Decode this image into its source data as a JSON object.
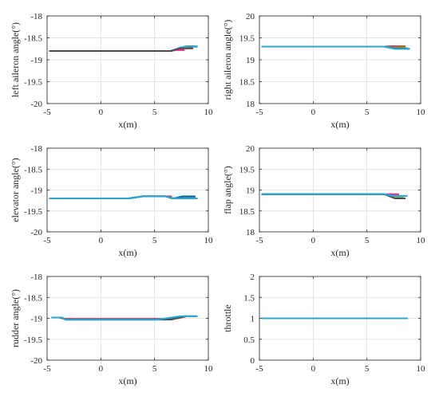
{
  "chart_data": [
    {
      "type": "line",
      "xlabel": "x(m)",
      "ylabel": "left aileron angle(°)",
      "xlim": [
        -5,
        10
      ],
      "ylim": [
        -20,
        -18
      ],
      "xticks": [
        -5,
        0,
        5,
        10
      ],
      "yticks": [
        -18,
        -18.5,
        -19,
        -19.5,
        -20
      ],
      "ytick_labels": [
        "-18",
        "-18.5",
        "-19",
        "-19.5",
        "-20"
      ],
      "grid": true,
      "series": [
        {
          "color": "#0072BD",
          "x": [
            -4.8,
            6.5,
            7.2,
            7.8,
            9.0
          ],
          "y": [
            -18.8,
            -18.8,
            -18.75,
            -18.7,
            -18.7
          ]
        },
        {
          "color": "#D95319",
          "x": [
            -4.8,
            6.5,
            7.2,
            8.0,
            8.5
          ],
          "y": [
            -18.8,
            -18.8,
            -18.76,
            -18.73,
            -18.73
          ]
        },
        {
          "color": "#77AC30",
          "x": [
            -4.8,
            6.5,
            7.0,
            7.6,
            8.2
          ],
          "y": [
            -18.8,
            -18.8,
            -18.76,
            -18.72,
            -18.72
          ]
        },
        {
          "color": "#E6288F",
          "x": [
            -4.8,
            6.5,
            7.0,
            7.8
          ],
          "y": [
            -18.8,
            -18.8,
            -18.78,
            -18.78
          ]
        },
        {
          "color": "#2CA7D2",
          "x": [
            -4.8,
            6.6,
            7.4,
            8.0,
            9.0
          ],
          "y": [
            -18.8,
            -18.8,
            -18.72,
            -18.69,
            -18.69
          ]
        },
        {
          "color": "#4D4D4D",
          "x": [
            -4.8,
            6.5,
            7.3,
            8.6
          ],
          "y": [
            -18.8,
            -18.8,
            -18.74,
            -18.74
          ]
        }
      ]
    },
    {
      "type": "line",
      "xlabel": "x(m)",
      "ylabel": "right aileron angle(°)",
      "xlim": [
        -5,
        10
      ],
      "ylim": [
        18,
        20
      ],
      "xticks": [
        -5,
        0,
        5,
        10
      ],
      "yticks": [
        20,
        19.5,
        19,
        18.5,
        18
      ],
      "ytick_labels": [
        "20",
        "19.5",
        "19",
        "18.5",
        "18"
      ],
      "grid": true,
      "series": [
        {
          "color": "#D95319",
          "x": [
            -4.8,
            6.6,
            7.2,
            8.6
          ],
          "y": [
            19.3,
            19.3,
            19.31,
            19.31
          ]
        },
        {
          "color": "#E6288F",
          "x": [
            -4.8,
            6.6,
            7.4,
            8.0
          ],
          "y": [
            19.3,
            19.3,
            19.3,
            19.3
          ]
        },
        {
          "color": "#77AC30",
          "x": [
            -4.8,
            6.6,
            7.4,
            8.6
          ],
          "y": [
            19.3,
            19.3,
            19.28,
            19.28
          ]
        },
        {
          "color": "#4D4D4D",
          "x": [
            -4.8,
            6.6,
            7.6,
            8.8
          ],
          "y": [
            19.3,
            19.3,
            19.26,
            19.26
          ]
        },
        {
          "color": "#0072BD",
          "x": [
            -4.8,
            6.6,
            7.6,
            9.0
          ],
          "y": [
            19.3,
            19.3,
            19.25,
            19.25
          ]
        },
        {
          "color": "#2CA7D2",
          "x": [
            -4.8,
            6.6,
            7.6,
            9.0
          ],
          "y": [
            19.3,
            19.3,
            19.25,
            19.25
          ]
        }
      ]
    },
    {
      "type": "line",
      "xlabel": "x(m)",
      "ylabel": "elevator angle(°)",
      "xlim": [
        -5,
        10
      ],
      "ylim": [
        -20,
        -18
      ],
      "xticks": [
        -5,
        0,
        5,
        10
      ],
      "yticks": [
        -18,
        -18.5,
        -19,
        -19.5,
        -20
      ],
      "ytick_labels": [
        "-18",
        "-18.5",
        "-19",
        "-19.5",
        "-20"
      ],
      "grid": true,
      "series": [
        {
          "color": "#E6288F",
          "x": [
            -4.8,
            2.6,
            3.9,
            6.6
          ],
          "y": [
            -19.2,
            -19.2,
            -19.15,
            -19.15
          ]
        },
        {
          "color": "#D95319",
          "x": [
            -4.8,
            2.6,
            3.9,
            6.0,
            6.8,
            8.0
          ],
          "y": [
            -19.2,
            -19.2,
            -19.15,
            -19.15,
            -19.2,
            -19.2
          ]
        },
        {
          "color": "#77AC30",
          "x": [
            -4.8,
            2.6,
            3.9,
            6.0,
            6.6,
            7.5
          ],
          "y": [
            -19.2,
            -19.2,
            -19.15,
            -19.15,
            -19.2,
            -19.2
          ]
        },
        {
          "color": "#4D4D4D",
          "x": [
            -4.8,
            2.6,
            3.9,
            6.0,
            6.8,
            7.6,
            8.8
          ],
          "y": [
            -19.2,
            -19.2,
            -19.15,
            -19.15,
            -19.2,
            -19.16,
            -19.16
          ]
        },
        {
          "color": "#0072BD",
          "x": [
            -4.8,
            2.6,
            3.9,
            6.0,
            6.8,
            7.6,
            8.8
          ],
          "y": [
            -19.2,
            -19.2,
            -19.15,
            -19.15,
            -19.2,
            -19.15,
            -19.15
          ]
        },
        {
          "color": "#2CA7D2",
          "x": [
            -4.8,
            2.6,
            3.9,
            6.0,
            6.8,
            9.0
          ],
          "y": [
            -19.2,
            -19.2,
            -19.15,
            -19.15,
            -19.2,
            -19.2
          ]
        }
      ]
    },
    {
      "type": "line",
      "xlabel": "x(m)",
      "ylabel": "flap angle(°)",
      "xlim": [
        -5,
        10
      ],
      "ylim": [
        18,
        20
      ],
      "xticks": [
        -5,
        0,
        5,
        10
      ],
      "yticks": [
        20,
        19.5,
        19,
        18.5,
        18
      ],
      "ytick_labels": [
        "20",
        "19.5",
        "19",
        "18.5",
        "18"
      ],
      "grid": true,
      "series": [
        {
          "color": "#E6288F",
          "x": [
            -4.8,
            6.6,
            7.4,
            8.0
          ],
          "y": [
            18.9,
            18.9,
            18.9,
            18.9
          ]
        },
        {
          "color": "#D95319",
          "x": [
            -4.8,
            6.6,
            7.4,
            8.6
          ],
          "y": [
            18.9,
            18.9,
            18.86,
            18.86
          ]
        },
        {
          "color": "#77AC30",
          "x": [
            -4.8,
            6.6,
            7.4,
            8.4
          ],
          "y": [
            18.9,
            18.9,
            18.84,
            18.84
          ]
        },
        {
          "color": "#4D4D4D",
          "x": [
            -4.8,
            6.6,
            7.6,
            8.6
          ],
          "y": [
            18.9,
            18.9,
            18.8,
            18.8
          ]
        },
        {
          "color": "#0072BD",
          "x": [
            -4.8,
            6.6,
            7.4,
            8.0
          ],
          "y": [
            18.9,
            18.9,
            18.86,
            18.86
          ]
        },
        {
          "color": "#2CA7D2",
          "x": [
            -4.8,
            6.6,
            7.4,
            8.8
          ],
          "y": [
            18.9,
            18.9,
            18.86,
            18.86
          ]
        }
      ]
    },
    {
      "type": "line",
      "xlabel": "x(m)",
      "ylabel": "rudder angle(°)",
      "xlim": [
        -5,
        10
      ],
      "ylim": [
        -20,
        -18
      ],
      "xticks": [
        -5,
        0,
        5,
        10
      ],
      "yticks": [
        -18,
        -18.5,
        -19,
        -19.5,
        -20
      ],
      "ytick_labels": [
        "-18",
        "-18.5",
        "-19",
        "-19.5",
        "-20"
      ],
      "grid": true,
      "series": [
        {
          "color": "#D95319",
          "x": [
            -4.0,
            -3.3,
            6.0,
            7.2,
            7.9
          ],
          "y": [
            -18.98,
            -19.01,
            -19.01,
            -19.0,
            -18.96
          ]
        },
        {
          "color": "#77AC30",
          "x": [
            -3.8,
            -3.2,
            5.8,
            6.8,
            7.5
          ],
          "y": [
            -18.99,
            -19.02,
            -19.02,
            -19.0,
            -18.96
          ]
        },
        {
          "color": "#E6288F",
          "x": [
            -3.8,
            -3.2,
            6.2,
            7.4
          ],
          "y": [
            -18.99,
            -19.02,
            -19.02,
            -18.97
          ]
        },
        {
          "color": "#4D4D4D",
          "x": [
            -4.6,
            -3.6,
            -3.3,
            6.6,
            7.8,
            8.8
          ],
          "y": [
            -18.98,
            -18.98,
            -19.03,
            -19.03,
            -18.95,
            -18.95
          ]
        },
        {
          "color": "#0072BD",
          "x": [
            -4.6,
            -3.6,
            -3.3,
            5.2,
            7.8,
            9.0
          ],
          "y": [
            -18.98,
            -18.98,
            -19.03,
            -19.03,
            -18.95,
            -18.95
          ]
        },
        {
          "color": "#2CA7D2",
          "x": [
            -4.6,
            -3.6,
            -3.3,
            5.2,
            7.4,
            9.0
          ],
          "y": [
            -18.98,
            -18.98,
            -19.03,
            -19.03,
            -18.95,
            -18.95
          ]
        }
      ]
    },
    {
      "type": "line",
      "xlabel": "x(m)",
      "ylabel": "throttle",
      "xlim": [
        -5,
        10
      ],
      "ylim": [
        0,
        2
      ],
      "xticks": [
        -5,
        0,
        5,
        10
      ],
      "yticks": [
        2,
        1.5,
        1,
        0.5,
        0
      ],
      "ytick_labels": [
        "2",
        "1.5",
        "1",
        "0.5",
        "0"
      ],
      "grid": true,
      "series": [
        {
          "color": "#D95319",
          "x": [
            -4.8,
            8.6
          ],
          "y": [
            1,
            1
          ]
        },
        {
          "color": "#77AC30",
          "x": [
            -4.8,
            8.6
          ],
          "y": [
            1,
            1
          ]
        },
        {
          "color": "#0072BD",
          "x": [
            -4.8,
            8.8
          ],
          "y": [
            1,
            1
          ]
        },
        {
          "color": "#2CA7D2",
          "x": [
            -4.8,
            8.8
          ],
          "y": [
            1,
            1
          ]
        }
      ]
    }
  ]
}
